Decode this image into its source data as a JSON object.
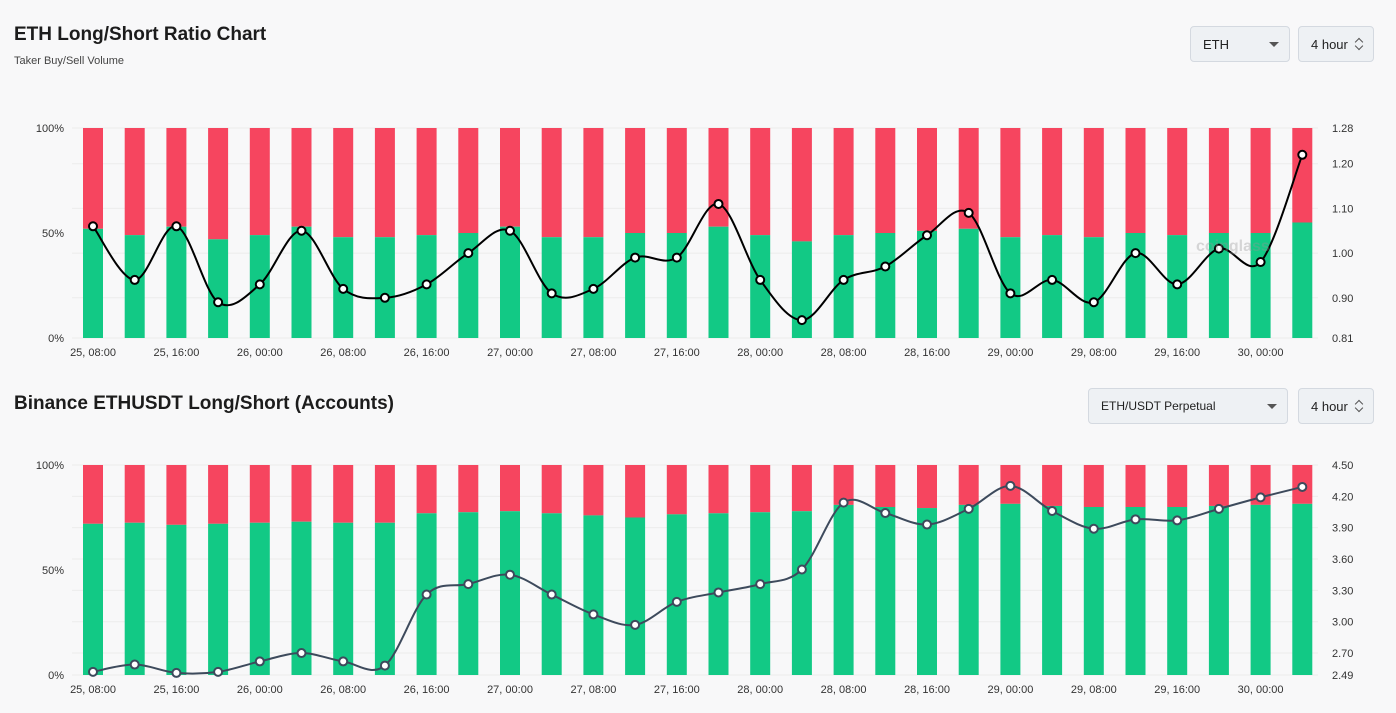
{
  "header1": {
    "title": "ETH Long/Short Ratio Chart",
    "subtitle": "Taker Buy/Sell Volume",
    "coin_select": "ETH",
    "interval_select": "4 hour"
  },
  "header2": {
    "title": "Binance ETHUSDT Long/Short (Accounts)",
    "pair_select": "ETH/USDT Perpetual",
    "interval_select": "4 hour"
  },
  "watermark": "coinglass",
  "colors": {
    "long": "#12c985",
    "short": "#f6455f",
    "line1": "#000000",
    "line2": "#3d4a5c",
    "grid": "#ececec"
  },
  "icons": {
    "dropdown": "chevron-down-icon",
    "stepper": "up-down-stepper-icon"
  },
  "chart_data": [
    {
      "type": "bar",
      "stacked": true,
      "title": "ETH Long/Short Ratio Chart",
      "x_labels": [
        "25, 08:00",
        "25, 16:00",
        "26, 00:00",
        "26, 08:00",
        "26, 16:00",
        "27, 00:00",
        "27, 08:00",
        "27, 16:00",
        "28, 00:00",
        "28, 08:00",
        "28, 16:00",
        "29, 00:00",
        "29, 08:00",
        "29, 16:00",
        "30, 00:00"
      ],
      "y_left_ticks": [
        "100%",
        "50%",
        "0%"
      ],
      "y_right_ticks": [
        "1.28",
        "1.20",
        "1.10",
        "1.00",
        "0.90",
        "0.81"
      ],
      "y_left_range": [
        0,
        100
      ],
      "y_right_range": [
        0.81,
        1.28
      ],
      "long_pct": [
        52,
        49,
        53,
        47,
        49,
        53,
        48,
        48,
        49,
        50,
        53,
        48,
        48,
        50,
        50,
        53,
        49,
        46,
        49,
        50,
        51,
        52,
        48,
        49,
        48,
        50,
        49,
        50,
        50,
        55
      ],
      "ratio": [
        1.06,
        0.94,
        1.06,
        0.89,
        0.93,
        1.05,
        0.92,
        0.9,
        0.93,
        1.0,
        1.05,
        0.91,
        0.92,
        0.99,
        0.99,
        1.11,
        0.94,
        0.85,
        0.94,
        0.97,
        1.04,
        1.09,
        0.91,
        0.94,
        0.89,
        1.0,
        0.93,
        1.01,
        0.98,
        1.22
      ],
      "grid": true
    },
    {
      "type": "bar",
      "stacked": true,
      "title": "Binance ETHUSDT Long/Short (Accounts)",
      "x_labels": [
        "25, 08:00",
        "25, 16:00",
        "26, 00:00",
        "26, 08:00",
        "26, 16:00",
        "27, 00:00",
        "27, 08:00",
        "27, 16:00",
        "28, 00:00",
        "28, 08:00",
        "28, 16:00",
        "29, 00:00",
        "29, 08:00",
        "29, 16:00",
        "30, 00:00"
      ],
      "y_left_ticks": [
        "100%",
        "50%",
        "0%"
      ],
      "y_right_ticks": [
        "4.50",
        "4.20",
        "3.90",
        "3.60",
        "3.30",
        "3.00",
        "2.70",
        "2.49"
      ],
      "y_left_range": [
        0,
        100
      ],
      "y_right_range": [
        2.49,
        4.5
      ],
      "long_pct": [
        72,
        72.5,
        71.5,
        72,
        72.5,
        73,
        72.5,
        72.5,
        77,
        77.5,
        78,
        77,
        76,
        75,
        76.5,
        77,
        77.5,
        78,
        81,
        80,
        79.5,
        81,
        81.5,
        80.5,
        80,
        80,
        80,
        80.5,
        81,
        81.5
      ],
      "ratio": [
        2.52,
        2.59,
        2.51,
        2.52,
        2.62,
        2.7,
        2.62,
        2.58,
        3.26,
        3.36,
        3.45,
        3.26,
        3.07,
        2.97,
        3.19,
        3.28,
        3.36,
        3.5,
        4.14,
        4.04,
        3.93,
        4.08,
        4.3,
        4.06,
        3.89,
        3.98,
        3.97,
        4.08,
        4.19,
        4.29
      ],
      "grid": true
    }
  ]
}
